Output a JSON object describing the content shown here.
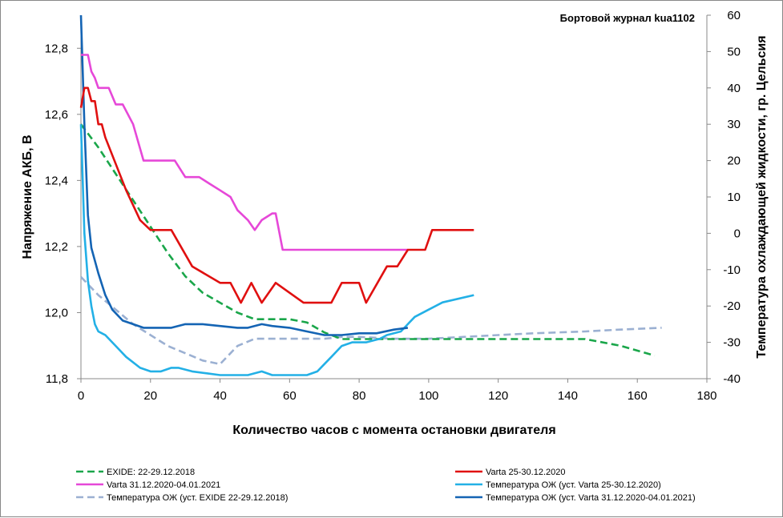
{
  "chart_data": {
    "type": "line",
    "title": "Бортовой журнал kua1102",
    "xlabel": "Количество часов с момента остановки двигателя",
    "ylabel": "Напряжение АКБ, В",
    "y2label": "Температура охлаждающей жидкости, гр. Цельсия",
    "xlim": [
      0,
      180
    ],
    "ylim": [
      11.8,
      12.9
    ],
    "y2lim": [
      -40,
      60
    ],
    "x_ticks": [
      "0",
      "20",
      "40",
      "60",
      "80",
      "100",
      "120",
      "140",
      "160",
      "180"
    ],
    "y_ticks": [
      "11,8",
      "12,0",
      "12,2",
      "12,4",
      "12,6",
      "12,8"
    ],
    "y2_ticks": [
      "-40",
      "-30",
      "-20",
      "-10",
      "0",
      "10",
      "20",
      "30",
      "40",
      "50",
      "60"
    ],
    "series": [
      {
        "name": "EXIDE: 22-29.12.2018",
        "axis": "left",
        "color": "#1aa64a",
        "dash": "dashed",
        "x": [
          0,
          5,
          10,
          15,
          20,
          25,
          30,
          35,
          40,
          45,
          50,
          55,
          60,
          65,
          70,
          75,
          80,
          90,
          100,
          110,
          120,
          130,
          145,
          155,
          165
        ],
        "y": [
          12.57,
          12.5,
          12.42,
          12.34,
          12.26,
          12.18,
          12.11,
          12.06,
          12.03,
          12.0,
          11.98,
          11.98,
          11.98,
          11.97,
          11.94,
          11.92,
          11.92,
          11.92,
          11.92,
          11.92,
          11.92,
          11.92,
          11.92,
          11.9,
          11.87
        ]
      },
      {
        "name": "Varta 25-30.12.2020",
        "axis": "left",
        "color": "#e01010",
        "dash": "solid",
        "x": [
          0,
          1,
          2,
          3,
          4,
          5,
          6,
          7,
          10,
          13,
          17,
          20,
          23,
          26,
          32,
          40,
          43,
          46,
          49,
          52,
          56,
          64,
          70,
          72,
          75,
          78,
          80,
          82,
          88,
          91,
          94,
          95,
          99,
          101,
          105,
          113
        ],
        "y": [
          12.62,
          12.68,
          12.68,
          12.64,
          12.64,
          12.57,
          12.57,
          12.53,
          12.45,
          12.37,
          12.28,
          12.25,
          12.25,
          12.25,
          12.14,
          12.09,
          12.09,
          12.03,
          12.09,
          12.03,
          12.09,
          12.03,
          12.03,
          12.03,
          12.09,
          12.09,
          12.09,
          12.03,
          12.14,
          12.14,
          12.19,
          12.19,
          12.19,
          12.25,
          12.25,
          12.25
        ]
      },
      {
        "name": "Varta 31.12.2020-04.01.2021",
        "axis": "left",
        "color": "#e648d8",
        "dash": "solid",
        "x": [
          0,
          1,
          2,
          3,
          4,
          5,
          6,
          8,
          10,
          12,
          15,
          18,
          20,
          22,
          25,
          27,
          30,
          34,
          37,
          40,
          43,
          45,
          48,
          50,
          52,
          55,
          56,
          58,
          60,
          65,
          70,
          80,
          90,
          94
        ],
        "y": [
          12.78,
          12.78,
          12.78,
          12.73,
          12.71,
          12.68,
          12.68,
          12.68,
          12.63,
          12.63,
          12.57,
          12.46,
          12.46,
          12.46,
          12.46,
          12.46,
          12.41,
          12.41,
          12.39,
          12.37,
          12.35,
          12.31,
          12.28,
          12.25,
          12.28,
          12.3,
          12.3,
          12.19,
          12.19,
          12.19,
          12.19,
          12.19,
          12.19,
          12.19
        ]
      },
      {
        "name": "Температура ОЖ (уст. Varta  25-30.12.2020)",
        "axis": "right",
        "color": "#23b0e6",
        "dash": "solid",
        "x": [
          0,
          1,
          2,
          3,
          4,
          5,
          7,
          10,
          13,
          17,
          20,
          23,
          26,
          28,
          32,
          36,
          40,
          44,
          48,
          52,
          55,
          60,
          65,
          68,
          70,
          72,
          75,
          78,
          82,
          86,
          88,
          92,
          96,
          100,
          104,
          113
        ],
        "y": [
          30,
          0,
          -13,
          -20,
          -25,
          -27,
          -28,
          -31,
          -34,
          -37,
          -38,
          -38,
          -37,
          -37,
          -38,
          -38.5,
          -39,
          -39,
          -39,
          -38,
          -39,
          -39,
          -39,
          -38,
          -36,
          -34,
          -31,
          -30,
          -30,
          -29,
          -28,
          -27,
          -23,
          -21,
          -19,
          -17
        ]
      },
      {
        "name": "Температура ОЖ (уст. EXIDE  22-29.12.2018)",
        "axis": "right",
        "color": "#9bb0d2",
        "dash": "dashed",
        "x": [
          0,
          5,
          10,
          15,
          20,
          25,
          30,
          35,
          40,
          45,
          50,
          55,
          60,
          65,
          70,
          75,
          80,
          90,
          100,
          110,
          120,
          130,
          145,
          155,
          167
        ],
        "y": [
          -12,
          -17,
          -21,
          -25,
          -28,
          -31,
          -33,
          -35,
          -36,
          -31,
          -29,
          -29,
          -29,
          -29,
          -29,
          -28.5,
          -28.5,
          -29,
          -29,
          -28.5,
          -28,
          -27.5,
          -27,
          -26.5,
          -26
        ]
      },
      {
        "name": "Температура ОЖ (уст. Varta 31.12.2020-04.01.2021)",
        "axis": "right",
        "color": "#1464b4",
        "dash": "solid",
        "x": [
          0,
          1,
          2,
          3,
          5,
          7,
          9,
          12,
          15,
          18,
          20,
          23,
          26,
          30,
          35,
          40,
          45,
          48,
          52,
          55,
          60,
          65,
          70,
          75,
          80,
          85,
          90,
          94
        ],
        "y": [
          60,
          30,
          5,
          -4,
          -11,
          -17,
          -21,
          -24,
          -25,
          -26,
          -26,
          -26,
          -26,
          -25,
          -25,
          -25.5,
          -26,
          -26,
          -25,
          -25.5,
          -26,
          -27,
          -28,
          -28,
          -27.5,
          -27.5,
          -26.5,
          -26
        ]
      }
    ],
    "legend": {
      "placement": "bottom"
    }
  }
}
